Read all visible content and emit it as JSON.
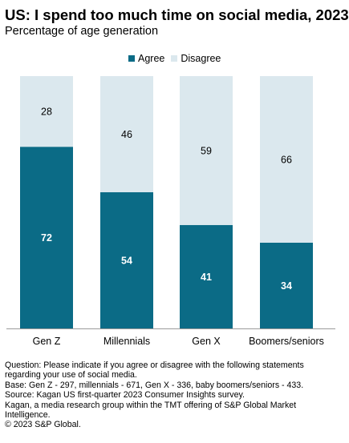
{
  "chart_data": {
    "type": "bar",
    "stacked": true,
    "title": "US: I spend too much time on social media, 2023",
    "subtitle": "Percentage of age generation",
    "categories": [
      "Gen Z",
      "Millennials",
      "Gen X",
      "Boomers/seniors"
    ],
    "series": [
      {
        "name": "Agree",
        "values": [
          72,
          54,
          41,
          34
        ],
        "color": "#0b6b86",
        "label_color": "#ffffff"
      },
      {
        "name": "Disagree",
        "values": [
          28,
          46,
          59,
          66
        ],
        "color": "#dbe8ee",
        "label_color": "#000000"
      }
    ],
    "ylim": [
      0,
      100
    ],
    "grid": false,
    "legend": "top"
  },
  "footnotes": [
    "Question: Please indicate if you agree or disagree with the following statements regarding your use of social media.",
    "Base: Gen Z - 297, millennials - 671, Gen X - 336, baby boomers/seniors - 433.",
    "Source: Kagan US first-quarter 2023 Consumer Insights survey.",
    "Kagan, a media research group within the TMT offering of S&P Global Market Intelligence.",
    "© 2023 S&P Global."
  ]
}
